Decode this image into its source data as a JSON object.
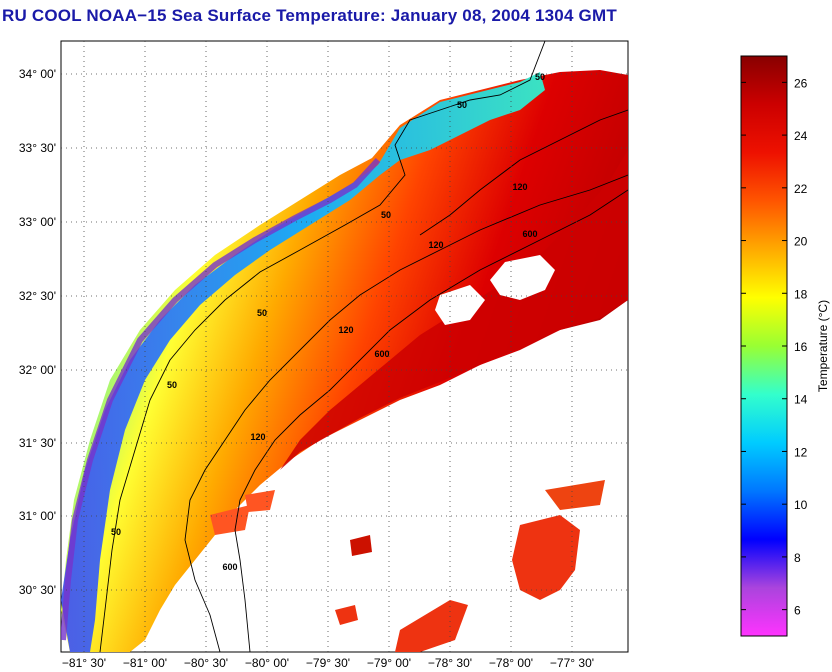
{
  "title": "RU COOL  NOAA−15  Sea Surface Temperature:  January 08, 2004 1304 GMT",
  "map": {
    "lat_labels": [
      "34° 00'",
      "33° 30'",
      "33° 00'",
      "32° 30'",
      "32° 00'",
      "31° 30'",
      "31° 00'",
      "30° 30'"
    ],
    "lon_labels": [
      "−81° 30'",
      "−81° 00'",
      "−80° 30'",
      "−80° 00'",
      "−79° 30'",
      "−79° 00'",
      "−78° 30'",
      "−78° 00'",
      "−77° 30'"
    ],
    "contour_labels": [
      {
        "text": "50",
        "iso": "50m"
      },
      {
        "text": "50",
        "iso": "50m"
      },
      {
        "text": "50",
        "iso": "50m"
      },
      {
        "text": "50",
        "iso": "50m"
      },
      {
        "text": "50",
        "iso": "50m"
      },
      {
        "text": "50",
        "iso": "50m"
      },
      {
        "text": "120",
        "iso": "120m"
      },
      {
        "text": "120",
        "iso": "120m"
      },
      {
        "text": "120",
        "iso": "120m"
      },
      {
        "text": "120",
        "iso": "120m"
      },
      {
        "text": "600",
        "iso": "600m"
      },
      {
        "text": "600",
        "iso": "600m"
      },
      {
        "text": "600",
        "iso": "600m"
      }
    ]
  },
  "colorbar": {
    "label": "Temperature (°C)",
    "ticks": [
      "26",
      "24",
      "22",
      "20",
      "18",
      "16",
      "14",
      "12",
      "10",
      "8",
      "6"
    ],
    "min": 5,
    "max": 27,
    "colors": [
      "#ff33ff",
      "#aa44dd",
      "#0000ff",
      "#0077ff",
      "#00ccff",
      "#33ffcc",
      "#99ff33",
      "#ffff00",
      "#ffaa00",
      "#ff5500",
      "#ee1100",
      "#cc0000",
      "#880000"
    ]
  }
}
